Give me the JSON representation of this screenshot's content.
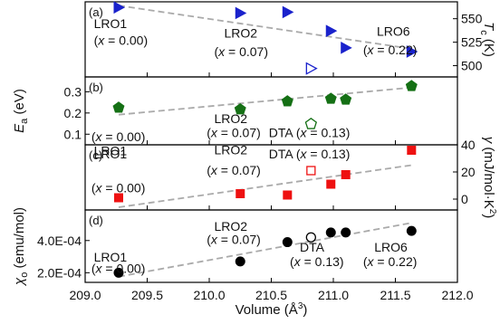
{
  "chart_data": [
    {
      "type": "scatter",
      "panel": "(a)",
      "ylabel": "T_c (K)",
      "ylabel_main": "T",
      "ylabel_sub": "c",
      "ylabel_unit": "(K)",
      "y_side": "right",
      "ylim": [
        488,
        568
      ],
      "yticks": [
        500,
        525,
        550
      ],
      "series": [
        {
          "marker": "triangle-right",
          "filled": true,
          "color": "#1a22cc",
          "x": [
            209.27,
            210.25,
            210.63,
            210.98,
            211.1,
            211.63
          ],
          "y": [
            562,
            556,
            557,
            537,
            519,
            515
          ]
        },
        {
          "marker": "triangle-right",
          "filled": false,
          "color": "#1a22cc",
          "x": [
            210.82
          ],
          "y": [
            497
          ]
        }
      ],
      "trend": {
        "x": [
          209.27,
          211.63
        ],
        "y": [
          564,
          518
        ]
      },
      "annotations": [
        {
          "text": "LRO1",
          "x": 209.07,
          "y": 540
        },
        {
          "text": "(x = 0.00)",
          "x": 209.07,
          "y": 522
        },
        {
          "text": "LRO2",
          "x": 210.12,
          "y": 530
        },
        {
          "text": "(x = 0.07)",
          "x": 210.04,
          "y": 510
        },
        {
          "text": "LRO6",
          "x": 211.35,
          "y": 532
        },
        {
          "text": "(x = 0.22)",
          "x": 211.24,
          "y": 512
        }
      ]
    },
    {
      "type": "scatter",
      "panel": "(b)",
      "ylabel": "E_a (eV)",
      "ylabel_main": "E",
      "ylabel_sub": "a",
      "ylabel_unit": "(eV)",
      "y_side": "left",
      "ylim": [
        0.05,
        0.37
      ],
      "yticks": [
        0.1,
        0.2,
        0.3
      ],
      "series": [
        {
          "marker": "pentagon",
          "filled": true,
          "color": "#157015",
          "x": [
            209.27,
            210.25,
            210.63,
            210.98,
            211.1,
            211.63
          ],
          "y": [
            0.225,
            0.217,
            0.255,
            0.267,
            0.263,
            0.327
          ]
        },
        {
          "marker": "pentagon",
          "filled": false,
          "color": "#157015",
          "x": [
            210.82
          ],
          "y": [
            0.148
          ]
        }
      ],
      "trend": {
        "x": [
          209.27,
          211.63
        ],
        "y": [
          0.192,
          0.32
        ]
      },
      "annotations": [
        {
          "text": "LRO1",
          "x": 209.07,
          "y": 0.0
        },
        {
          "text": "(x = 0.00)",
          "x": 209.05,
          "y": 0.067
        },
        {
          "text": "LRO2",
          "x": 210.04,
          "y": 0.152
        },
        {
          "text": "(x = 0.07)",
          "x": 209.98,
          "y": 0.087
        },
        {
          "text": "DTA (x = 0.13)",
          "x": 210.48,
          "y": 0.087
        }
      ]
    },
    {
      "type": "scatter",
      "panel": "(c)",
      "ylabel": "γ (mJ/mol·K²)",
      "ylabel_main": "γ",
      "ylabel_unit": "(mJ/mol·K",
      "ylabel_sup": "2",
      "ylabel_close": ")",
      "y_side": "right",
      "ylim": [
        -8,
        40
      ],
      "yticks": [
        0,
        20,
        40
      ],
      "series": [
        {
          "marker": "square",
          "filled": true,
          "color": "#ee1111",
          "x": [
            209.27,
            210.25,
            210.63,
            210.98,
            211.1,
            211.63
          ],
          "y": [
            1,
            4,
            3,
            11,
            18,
            36
          ]
        },
        {
          "marker": "square",
          "filled": false,
          "color": "#ee1111",
          "x": [
            210.82
          ],
          "y": [
            21
          ]
        }
      ],
      "trend": {
        "x": [
          209.27,
          211.63
        ],
        "y": [
          -6,
          25
        ]
      },
      "annotations": [
        {
          "text": "LRO1",
          "x": 209.07,
          "y": 30
        },
        {
          "text": "(x = 0.00)",
          "x": 209.05,
          "y": 5
        },
        {
          "text": "LRO2",
          "x": 210.04,
          "y": 33
        },
        {
          "text": "(x = 0.07)",
          "x": 209.98,
          "y": 18
        },
        {
          "text": "DTA (x = 0.13)",
          "x": 210.48,
          "y": 30
        }
      ]
    },
    {
      "type": "scatter",
      "panel": "(d)",
      "ylabel": "χ_o (emu/mol)",
      "ylabel_main": "χ",
      "ylabel_sub": "o",
      "ylabel_unit": "(emu/mol)",
      "y_side": "left",
      "xlabel": "Volume (Å³)",
      "xlabel_main": "Volume (Å",
      "xlabel_sup": "3",
      "xlabel_close": ")",
      "xlim": [
        209.0,
        212.0
      ],
      "xticks": [
        "209.0",
        "209.5",
        "210.0",
        "210.5",
        "211.0",
        "211.5",
        "212.0"
      ],
      "ylim": [
        0.00014,
        0.00059
      ],
      "yticks": [
        "2.0E-04",
        "4.0E-04"
      ],
      "ytick_values": [
        0.0002,
        0.0004
      ],
      "series": [
        {
          "marker": "circle",
          "filled": true,
          "color": "#000000",
          "x": [
            209.27,
            210.25,
            210.63,
            210.98,
            211.1,
            211.63
          ],
          "y": [
            0.0002,
            0.00027,
            0.00039,
            0.00045,
            0.00045,
            0.00046
          ]
        },
        {
          "marker": "circle",
          "filled": false,
          "color": "#000000",
          "x": [
            210.82
          ],
          "y": [
            0.00042
          ]
        }
      ],
      "trend": {
        "x": [
          209.27,
          211.63
        ],
        "y": [
          0.000175,
          0.00051
        ]
      },
      "annotations": [
        {
          "text": "LRO1",
          "x": 209.07,
          "y": 0.00027
        },
        {
          "text": "(x = 0.00)",
          "x": 209.05,
          "y": 0.0002
        },
        {
          "text": "LRO2",
          "x": 210.04,
          "y": 0.00046
        },
        {
          "text": "(x = 0.07)",
          "x": 209.98,
          "y": 0.00038
        },
        {
          "text": "DTA",
          "x": 210.73,
          "y": 0.00033
        },
        {
          "text": "(x = 0.13)",
          "x": 210.65,
          "y": 0.00024
        },
        {
          "text": "LRO6",
          "x": 211.33,
          "y": 0.00033
        },
        {
          "text": "(x = 0.22)",
          "x": 211.24,
          "y": 0.00024
        }
      ]
    }
  ]
}
